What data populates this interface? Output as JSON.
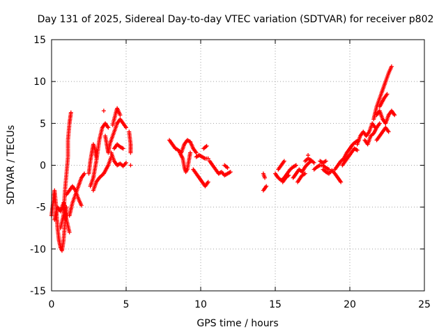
{
  "chart_data": {
    "type": "scatter",
    "title": "Day 131 of 2025, Sidereal Day-to-day VTEC variation (SDTVAR) for receiver p802",
    "xlabel": "GPS time / hours",
    "ylabel": "SDTVAR / TECUs",
    "xlim": [
      0,
      25
    ],
    "ylim": [
      -15,
      15
    ],
    "xticks": [
      0,
      5,
      10,
      15,
      20,
      25
    ],
    "yticks": [
      -15,
      -10,
      -5,
      0,
      5,
      10,
      15
    ],
    "xtick_labels": [
      "0",
      "5",
      "10",
      "15",
      "20",
      "25"
    ],
    "ytick_labels": [
      "-15",
      "-10",
      "-5",
      "0",
      "5",
      "10",
      "15"
    ],
    "grid": true,
    "marker": "plus",
    "color": "#ff0000",
    "series": [
      {
        "name": "SDTVAR",
        "segments": [
          [
            [
              0.0,
              -6.0
            ],
            [
              0.1,
              -4.5
            ],
            [
              0.2,
              -3.0
            ],
            [
              0.3,
              -4.8
            ],
            [
              0.4,
              -7.5
            ],
            [
              0.5,
              -9.0
            ],
            [
              0.6,
              -9.8
            ],
            [
              0.7,
              -10.2
            ],
            [
              0.8,
              -9.0
            ],
            [
              0.9,
              -7.0
            ],
            [
              1.0,
              -5.0
            ]
          ],
          [
            [
              0.2,
              -6.5
            ],
            [
              0.4,
              -5.0
            ],
            [
              0.6,
              -5.5
            ],
            [
              0.8,
              -4.5
            ],
            [
              1.0,
              -6.5
            ],
            [
              1.2,
              -8.0
            ]
          ],
          [
            [
              0.6,
              -7.5
            ],
            [
              0.8,
              -6.0
            ],
            [
              0.9,
              -3.0
            ],
            [
              1.0,
              -1.0
            ],
            [
              1.1,
              1.0
            ],
            [
              1.1,
              3.0
            ],
            [
              1.2,
              5.0
            ],
            [
              1.3,
              6.3
            ]
          ],
          [
            [
              1.0,
              -3.5
            ],
            [
              1.2,
              -3.0
            ],
            [
              1.4,
              -2.5
            ],
            [
              1.6,
              -3.0
            ],
            [
              1.8,
              -4.0
            ],
            [
              2.0,
              -4.8
            ]
          ],
          [
            [
              1.2,
              -6.0
            ],
            [
              1.4,
              -4.5
            ],
            [
              1.6,
              -3.5
            ],
            [
              1.8,
              -2.5
            ],
            [
              2.0,
              -1.5
            ],
            [
              2.2,
              -1.0
            ]
          ],
          [
            [
              2.5,
              -1.0
            ],
            [
              2.6,
              0.5
            ],
            [
              2.7,
              1.5
            ],
            [
              2.8,
              2.5
            ],
            [
              2.9,
              2.0
            ],
            [
              3.0,
              1.0
            ]
          ],
          [
            [
              2.6,
              -2.5
            ],
            [
              2.8,
              -1.5
            ],
            [
              3.0,
              0.5
            ],
            [
              3.2,
              3.0
            ],
            [
              3.4,
              4.5
            ],
            [
              3.6,
              5.0
            ],
            [
              3.8,
              4.5
            ]
          ],
          [
            [
              2.8,
              -3.0
            ],
            [
              3.0,
              -2.0
            ],
            [
              3.2,
              -1.5
            ],
            [
              3.5,
              -1.0
            ],
            [
              3.8,
              0.0
            ],
            [
              4.0,
              1.0
            ]
          ],
          [
            [
              3.5,
              6.5
            ]
          ],
          [
            [
              3.6,
              3.5
            ],
            [
              3.7,
              2.5
            ],
            [
              3.8,
              1.5
            ],
            [
              3.9,
              2.5
            ],
            [
              4.0,
              3.0
            ],
            [
              4.2,
              4.0
            ],
            [
              4.4,
              5.0
            ],
            [
              4.6,
              5.5
            ],
            [
              4.8,
              5.0
            ],
            [
              5.0,
              4.5
            ]
          ],
          [
            [
              4.1,
              4.8
            ],
            [
              4.2,
              5.5
            ],
            [
              4.3,
              6.2
            ],
            [
              4.4,
              6.8
            ],
            [
              4.6,
              6.0
            ]
          ],
          [
            [
              4.0,
              1.5
            ],
            [
              4.2,
              0.5
            ],
            [
              4.4,
              0.0
            ],
            [
              4.6,
              0.2
            ],
            [
              4.8,
              -0.1
            ],
            [
              5.0,
              0.3
            ]
          ],
          [
            [
              4.2,
              2.0
            ],
            [
              4.4,
              2.5
            ],
            [
              4.6,
              2.2
            ],
            [
              4.8,
              2.0
            ]
          ],
          [
            [
              5.2,
              4.0
            ],
            [
              5.3,
              2.5
            ],
            [
              5.3,
              1.5
            ]
          ],
          [
            [
              5.3,
              0.0
            ]
          ],
          [
            [
              7.9,
              3.0
            ],
            [
              8.1,
              2.5
            ],
            [
              8.3,
              2.0
            ],
            [
              8.5,
              1.8
            ],
            [
              8.7,
              1.5
            ],
            [
              8.9,
              2.5
            ],
            [
              9.1,
              3.0
            ],
            [
              9.3,
              2.8
            ],
            [
              9.5,
              2.0
            ],
            [
              9.7,
              1.5
            ]
          ],
          [
            [
              8.6,
              1.5
            ],
            [
              8.8,
              0.8
            ],
            [
              8.9,
              -0.2
            ],
            [
              9.0,
              -0.8
            ],
            [
              9.1,
              -0.5
            ],
            [
              9.2,
              0.5
            ],
            [
              9.3,
              1.5
            ]
          ],
          [
            [
              9.5,
              -0.5
            ],
            [
              9.7,
              -1.0
            ],
            [
              9.9,
              -1.5
            ],
            [
              10.1,
              -2.0
            ],
            [
              10.3,
              -2.5
            ],
            [
              10.5,
              -2.0
            ]
          ],
          [
            [
              9.7,
              1.0
            ],
            [
              9.9,
              1.2
            ],
            [
              10.1,
              1.0
            ],
            [
              10.3,
              0.8
            ],
            [
              10.5,
              0.8
            ]
          ],
          [
            [
              10.2,
              2.0
            ],
            [
              10.4,
              2.3
            ]
          ],
          [
            [
              10.6,
              0.5
            ],
            [
              10.8,
              0.0
            ],
            [
              11.0,
              -0.5
            ],
            [
              11.2,
              -1.0
            ],
            [
              11.4,
              -0.8
            ],
            [
              11.6,
              -1.2
            ],
            [
              11.8,
              -1.0
            ],
            [
              12.0,
              -0.8
            ]
          ],
          [
            [
              11.6,
              0.0
            ],
            [
              11.8,
              -0.3
            ]
          ],
          [
            [
              14.2,
              -1.0
            ],
            [
              14.3,
              -1.5
            ]
          ],
          [
            [
              14.2,
              -3.0
            ],
            [
              14.4,
              -2.5
            ]
          ],
          [
            [
              15.0,
              -1.0
            ],
            [
              15.2,
              -1.5
            ],
            [
              15.4,
              -1.8
            ],
            [
              15.6,
              -1.5
            ],
            [
              15.8,
              -1.0
            ],
            [
              16.0,
              -0.5
            ],
            [
              16.2,
              -0.2
            ],
            [
              16.4,
              0.0
            ]
          ],
          [
            [
              15.2,
              -0.5
            ],
            [
              15.4,
              0.0
            ],
            [
              15.6,
              0.5
            ]
          ],
          [
            [
              15.5,
              -2.0
            ],
            [
              15.7,
              -1.5
            ],
            [
              15.9,
              -1.2
            ]
          ],
          [
            [
              16.2,
              -1.5
            ],
            [
              16.4,
              -1.0
            ],
            [
              16.6,
              -0.5
            ],
            [
              16.8,
              -0.8
            ],
            [
              17.0,
              -0.2
            ],
            [
              17.2,
              0.2
            ],
            [
              17.4,
              0.5
            ]
          ],
          [
            [
              16.5,
              -2.0
            ],
            [
              16.8,
              -1.2
            ],
            [
              17.0,
              -1.0
            ]
          ],
          [
            [
              17.0,
              0.5
            ],
            [
              17.2,
              0.8
            ],
            [
              17.4,
              0.6
            ],
            [
              17.6,
              0.3
            ]
          ],
          [
            [
              17.2,
              1.2
            ]
          ],
          [
            [
              17.6,
              -0.5
            ],
            [
              17.8,
              -0.2
            ],
            [
              18.0,
              0.0
            ],
            [
              18.2,
              0.0
            ],
            [
              18.4,
              -0.3
            ],
            [
              18.6,
              -0.5
            ]
          ],
          [
            [
              18.2,
              -0.5
            ],
            [
              18.4,
              -0.8
            ],
            [
              18.6,
              -1.0
            ],
            [
              18.8,
              -0.6
            ],
            [
              19.0,
              -1.0
            ],
            [
              19.2,
              -1.5
            ],
            [
              19.4,
              -2.0
            ]
          ],
          [
            [
              18.0,
              0.5
            ],
            [
              18.2,
              0.3
            ],
            [
              18.4,
              0.5
            ]
          ],
          [
            [
              19.0,
              -0.5
            ],
            [
              19.2,
              0.0
            ],
            [
              19.4,
              0.5
            ],
            [
              19.6,
              0.8
            ],
            [
              19.8,
              1.5
            ],
            [
              20.0,
              2.0
            ],
            [
              20.2,
              2.5
            ],
            [
              20.4,
              2.8
            ],
            [
              20.6,
              3.0
            ]
          ],
          [
            [
              19.5,
              0.0
            ],
            [
              19.7,
              0.5
            ],
            [
              19.9,
              1.0
            ],
            [
              20.1,
              1.5
            ],
            [
              20.3,
              2.0
            ],
            [
              20.5,
              1.8
            ]
          ],
          [
            [
              20.5,
              2.5
            ],
            [
              20.7,
              3.5
            ],
            [
              20.9,
              4.0
            ],
            [
              21.1,
              3.5
            ],
            [
              21.3,
              4.0
            ],
            [
              21.5,
              5.0
            ],
            [
              21.7,
              4.5
            ]
          ],
          [
            [
              21.0,
              3.0
            ],
            [
              21.2,
              2.5
            ],
            [
              21.4,
              3.5
            ],
            [
              21.6,
              3.8
            ],
            [
              21.8,
              4.5
            ],
            [
              22.0,
              5.0
            ]
          ],
          [
            [
              21.6,
              5.5
            ],
            [
              21.8,
              7.0
            ],
            [
              22.0,
              8.0
            ],
            [
              22.2,
              9.0
            ],
            [
              22.4,
              10.0
            ],
            [
              22.6,
              11.0
            ],
            [
              22.8,
              11.8
            ]
          ],
          [
            [
              21.8,
              6.0
            ],
            [
              22.0,
              6.5
            ],
            [
              22.2,
              5.5
            ],
            [
              22.4,
              5.0
            ],
            [
              22.6,
              6.0
            ],
            [
              22.8,
              6.5
            ],
            [
              23.0,
              6.0
            ]
          ],
          [
            [
              21.8,
              3.0
            ],
            [
              22.0,
              3.5
            ],
            [
              22.2,
              4.0
            ],
            [
              22.4,
              4.5
            ],
            [
              22.6,
              4.0
            ]
          ],
          [
            [
              22.0,
              7.0
            ],
            [
              22.3,
              8.0
            ],
            [
              22.5,
              8.5
            ]
          ]
        ]
      }
    ]
  }
}
